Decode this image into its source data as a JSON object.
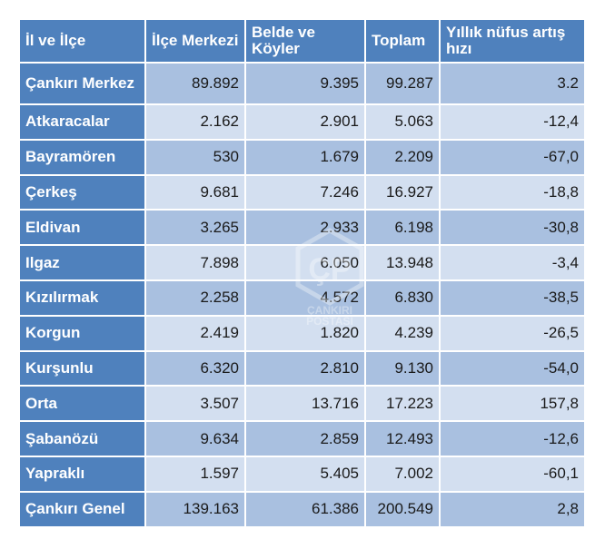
{
  "table": {
    "headers": [
      "İl ve İlçe",
      "İlçe Merkezi",
      "Belde ve Köyler",
      "Toplam",
      "Yıllık nüfus artış hızı"
    ],
    "rows": [
      {
        "name": "Çankırı Merkez",
        "merkez": "89.892",
        "koyler": "9.395",
        "toplam": "99.287",
        "artis": "3.2"
      },
      {
        "name": "Atkaracalar",
        "merkez": "2.162",
        "koyler": "2.901",
        "toplam": "5.063",
        "artis": "-12,4"
      },
      {
        "name": "Bayramören",
        "merkez": "530",
        "koyler": "1.679",
        "toplam": "2.209",
        "artis": "-67,0"
      },
      {
        "name": "Çerkeş",
        "merkez": "9.681",
        "koyler": "7.246",
        "toplam": "16.927",
        "artis": "-18,8"
      },
      {
        "name": "Eldivan",
        "merkez": "3.265",
        "koyler": "2.933",
        "toplam": "6.198",
        "artis": "-30,8"
      },
      {
        "name": "Ilgaz",
        "merkez": "7.898",
        "koyler": "6.050",
        "toplam": "13.948",
        "artis": "-3,4"
      },
      {
        "name": "Kızılırmak",
        "merkez": "2.258",
        "koyler": "4.572",
        "toplam": "6.830",
        "artis": "-38,5"
      },
      {
        "name": "Korgun",
        "merkez": "2.419",
        "koyler": "1.820",
        "toplam": "4.239",
        "artis": "-26,5"
      },
      {
        "name": "Kurşunlu",
        "merkez": "6.320",
        "koyler": "2.810",
        "toplam": "9.130",
        "artis": "-54,0"
      },
      {
        "name": "Orta",
        "merkez": "3.507",
        "koyler": "13.716",
        "toplam": "17.223",
        "artis": "157,8"
      },
      {
        "name": "Şabanözü",
        "merkez": "9.634",
        "koyler": "2.859",
        "toplam": "12.493",
        "artis": "-12,6"
      },
      {
        "name": "Yapraklı",
        "merkez": "1.597",
        "koyler": "5.405",
        "toplam": "7.002",
        "artis": "-60,1"
      },
      {
        "name": "Çankırı Genel",
        "merkez": "139.163",
        "koyler": "61.386",
        "toplam": "200.549",
        "artis": "2,8"
      }
    ]
  },
  "watermark": {
    "line1": "ÇANKIRI",
    "line2": "POSTASI",
    "icon": "cankiri-postasi-logo-icon"
  },
  "colors": {
    "header_bg": "#4f81bd",
    "row_dark": "#a9c0e0",
    "row_light": "#d3dff0"
  }
}
